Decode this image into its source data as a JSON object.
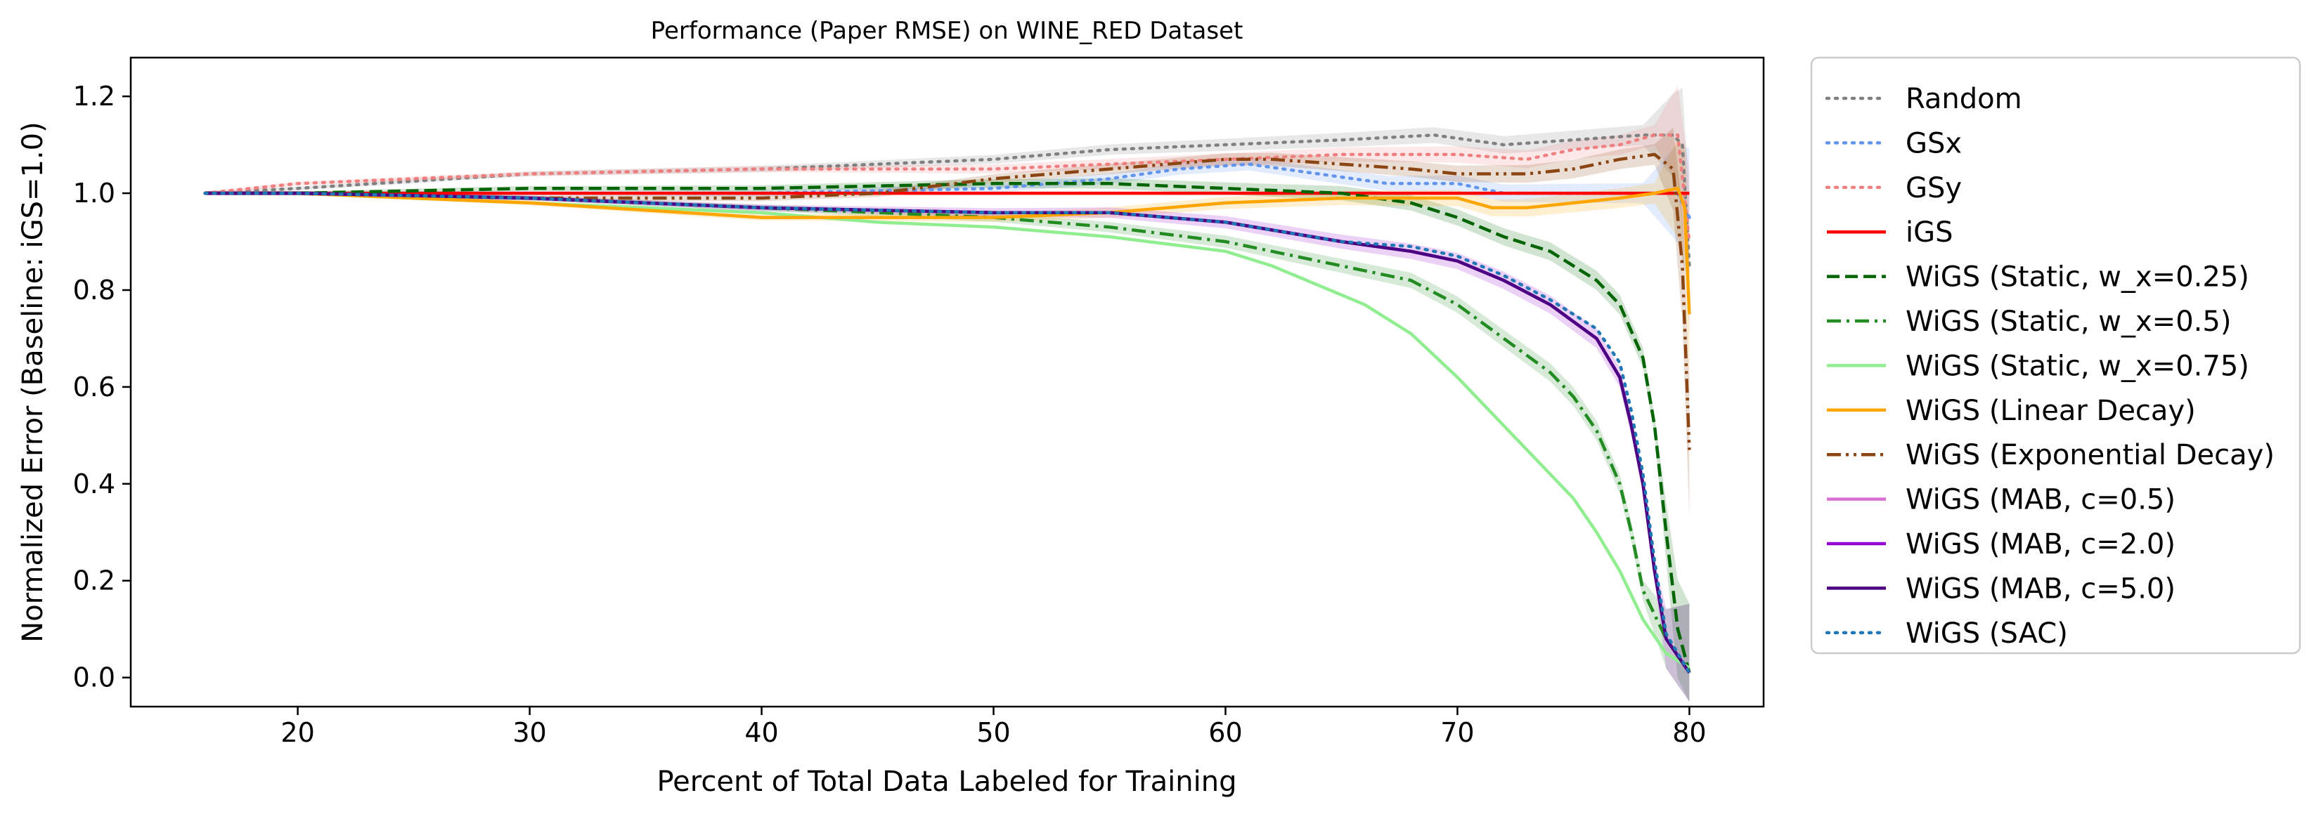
{
  "chart_data": {
    "type": "line",
    "title": "Performance (Paper RMSE) on WINE_RED Dataset",
    "xlabel": "Percent of Total Data Labeled for Training",
    "ylabel": "Normalized Error (Baseline: iGS=1.0)",
    "xlim": [
      12.8,
      83.2
    ],
    "ylim": [
      -0.06,
      1.28
    ],
    "xticks": [
      20,
      30,
      40,
      50,
      60,
      70,
      80
    ],
    "yticks": [
      0.0,
      0.2,
      0.4,
      0.6,
      0.8,
      1.0,
      1.2
    ],
    "grid": false,
    "legend_position": "outside-right",
    "series": [
      {
        "name": "Random",
        "color": "#808080",
        "dash": "dotted",
        "band": true,
        "x": [
          16,
          20,
          30,
          40,
          50,
          55,
          60,
          65,
          69,
          72,
          75,
          78,
          79.3,
          79.7,
          80
        ],
        "y": [
          1.0,
          1.01,
          1.04,
          1.05,
          1.07,
          1.09,
          1.1,
          1.11,
          1.12,
          1.1,
          1.11,
          1.12,
          1.12,
          1.1,
          0.85
        ]
      },
      {
        "name": "GSx",
        "color": "#6495ed",
        "dash": "dotted",
        "band": true,
        "x": [
          16,
          20,
          30,
          40,
          50,
          55,
          58,
          61,
          64,
          67,
          70,
          72,
          75,
          78,
          79.5,
          80
        ],
        "y": [
          1.0,
          1.0,
          1.0,
          1.0,
          1.01,
          1.03,
          1.05,
          1.06,
          1.04,
          1.02,
          1.02,
          1.0,
          1.0,
          1.0,
          1.0,
          0.95
        ]
      },
      {
        "name": "GSy",
        "color": "#f08080",
        "dash": "dotted",
        "band": true,
        "x": [
          16,
          20,
          30,
          40,
          50,
          55,
          60,
          65,
          70,
          73,
          75,
          77,
          78.5,
          79.5,
          80
        ],
        "y": [
          1.0,
          1.02,
          1.04,
          1.05,
          1.05,
          1.06,
          1.07,
          1.08,
          1.08,
          1.07,
          1.09,
          1.1,
          1.12,
          1.12,
          0.9
        ]
      },
      {
        "name": "iGS",
        "color": "#ff0000",
        "dash": "solid",
        "band": false,
        "x": [
          16,
          80
        ],
        "y": [
          1.0,
          1.0
        ]
      },
      {
        "name": "WiGS (Static, w_x=0.25)",
        "color": "#006400",
        "dash": "dashed",
        "band": true,
        "x": [
          16,
          20,
          30,
          40,
          50,
          55,
          60,
          65,
          68,
          70,
          72,
          74,
          76,
          77,
          78,
          78.5,
          79,
          79.5,
          80
        ],
        "y": [
          1.0,
          1.0,
          1.01,
          1.01,
          1.02,
          1.02,
          1.01,
          1.0,
          0.98,
          0.95,
          0.91,
          0.88,
          0.82,
          0.77,
          0.66,
          0.52,
          0.3,
          0.1,
          0.01
        ]
      },
      {
        "name": "WiGS (Static, w_x=0.5)",
        "color": "#228b22",
        "dash": "dashdot",
        "band": true,
        "x": [
          16,
          20,
          30,
          40,
          50,
          55,
          60,
          62,
          65,
          68,
          70,
          72,
          74,
          75,
          76,
          77,
          77.5,
          78,
          79,
          80
        ],
        "y": [
          1.0,
          1.0,
          0.99,
          0.97,
          0.95,
          0.93,
          0.9,
          0.88,
          0.85,
          0.82,
          0.77,
          0.7,
          0.63,
          0.58,
          0.51,
          0.4,
          0.3,
          0.18,
          0.08,
          0.01
        ]
      },
      {
        "name": "WiGS (Static, w_x=0.75)",
        "color": "#90ee90",
        "dash": "solid",
        "band": false,
        "x": [
          16,
          20,
          30,
          40,
          45,
          50,
          55,
          60,
          62,
          64,
          66,
          68,
          70,
          72,
          74,
          75,
          76,
          77,
          78,
          79,
          80
        ],
        "y": [
          1.0,
          1.0,
          0.98,
          0.96,
          0.94,
          0.93,
          0.91,
          0.88,
          0.85,
          0.81,
          0.77,
          0.71,
          0.62,
          0.52,
          0.42,
          0.37,
          0.3,
          0.22,
          0.12,
          0.05,
          0.02
        ]
      },
      {
        "name": "WiGS (Linear Decay)",
        "color": "#ffa500",
        "dash": "solid",
        "band": true,
        "x": [
          16,
          20,
          30,
          40,
          50,
          55,
          60,
          65,
          70,
          71.5,
          73,
          75,
          77,
          78.5,
          79.5,
          79.8,
          80
        ],
        "y": [
          1.0,
          1.0,
          0.98,
          0.95,
          0.95,
          0.96,
          0.98,
          0.99,
          0.99,
          0.97,
          0.97,
          0.98,
          0.99,
          1.0,
          1.01,
          0.97,
          0.75
        ]
      },
      {
        "name": "WiGS (Exponential Decay)",
        "color": "#8b4513",
        "dash": "dashdotdot",
        "band": true,
        "x": [
          16,
          20,
          30,
          40,
          45,
          50,
          55,
          60,
          62,
          65,
          68,
          70,
          73,
          75,
          77,
          78.5,
          79.3,
          79.7,
          80
        ],
        "y": [
          1.0,
          1.0,
          0.99,
          0.99,
          1.0,
          1.03,
          1.05,
          1.07,
          1.07,
          1.06,
          1.05,
          1.04,
          1.04,
          1.05,
          1.07,
          1.08,
          1.05,
          0.85,
          0.47
        ]
      },
      {
        "name": "WiGS (MAB, c=0.5)",
        "color": "#da70d6",
        "dash": "solid",
        "band": false,
        "x": [
          16,
          20,
          30,
          40,
          50,
          55,
          60,
          65,
          68,
          70,
          72,
          74,
          76,
          77,
          77.5,
          78,
          78.5,
          79,
          80
        ],
        "y": [
          1.0,
          1.0,
          0.99,
          0.97,
          0.96,
          0.96,
          0.94,
          0.9,
          0.88,
          0.86,
          0.82,
          0.77,
          0.7,
          0.62,
          0.52,
          0.4,
          0.22,
          0.08,
          0.01
        ]
      },
      {
        "name": "WiGS (MAB, c=2.0)",
        "color": "#9400d3",
        "dash": "solid",
        "band": true,
        "x": [
          16,
          20,
          30,
          40,
          50,
          55,
          60,
          65,
          68,
          70,
          72,
          74,
          76,
          77,
          77.5,
          78,
          78.5,
          79,
          80
        ],
        "y": [
          1.0,
          1.0,
          0.99,
          0.97,
          0.96,
          0.96,
          0.94,
          0.9,
          0.88,
          0.86,
          0.82,
          0.77,
          0.7,
          0.62,
          0.52,
          0.4,
          0.22,
          0.08,
          0.01
        ]
      },
      {
        "name": "WiGS (MAB, c=5.0)",
        "color": "#4b0082",
        "dash": "solid",
        "band": false,
        "x": [
          16,
          20,
          30,
          40,
          50,
          55,
          60,
          65,
          68,
          70,
          72,
          74,
          76,
          77,
          77.5,
          78,
          78.5,
          79,
          80
        ],
        "y": [
          1.0,
          1.0,
          0.99,
          0.97,
          0.96,
          0.96,
          0.94,
          0.9,
          0.88,
          0.86,
          0.82,
          0.77,
          0.7,
          0.62,
          0.52,
          0.4,
          0.22,
          0.08,
          0.01
        ]
      },
      {
        "name": "WiGS (SAC)",
        "color": "#1f77b4",
        "dash": "dotted",
        "band": false,
        "x": [
          16,
          20,
          30,
          40,
          50,
          55,
          60,
          65,
          68,
          70,
          72,
          74,
          76,
          77,
          77.5,
          78,
          78.5,
          79,
          80
        ],
        "y": [
          1.0,
          1.0,
          0.99,
          0.97,
          0.96,
          0.96,
          0.94,
          0.9,
          0.89,
          0.87,
          0.83,
          0.78,
          0.72,
          0.65,
          0.55,
          0.42,
          0.24,
          0.09,
          0.01
        ]
      }
    ]
  }
}
